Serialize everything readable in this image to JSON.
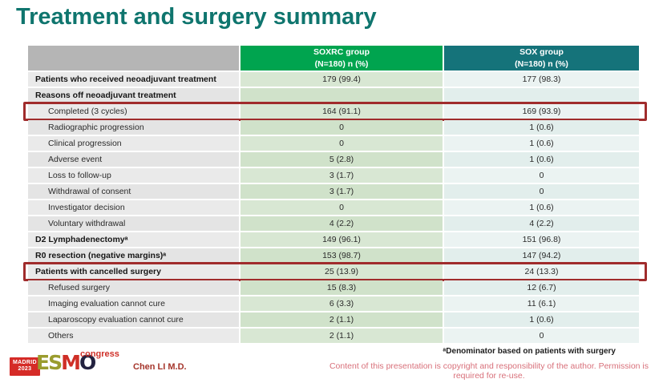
{
  "slide": {
    "title": "Treatment and surgery summary"
  },
  "table": {
    "header": {
      "soxrc_line1": "SOXRC group",
      "soxrc_line2": "(N=180) n (%)",
      "sox_line1": "SOX group",
      "sox_line2": "(N=180) n (%)"
    },
    "rows": [
      {
        "label": "Patients who received neoadjuvant treatment",
        "soxrc": "179 (99.4)",
        "sox": "177 (98.3)",
        "bold": true,
        "indent": false,
        "highlight": false
      },
      {
        "label": "Reasons off neoadjuvant treatment",
        "soxrc": "",
        "sox": "",
        "bold": true,
        "indent": false,
        "highlight": false
      },
      {
        "label": "Completed (3 cycles)",
        "soxrc": "164 (91.1)",
        "sox": "169 (93.9)",
        "bold": false,
        "indent": true,
        "highlight": true
      },
      {
        "label": "Radiographic progression",
        "soxrc": "0",
        "sox": "1 (0.6)",
        "bold": false,
        "indent": true,
        "highlight": false
      },
      {
        "label": "Clinical progression",
        "soxrc": "0",
        "sox": "1 (0.6)",
        "bold": false,
        "indent": true,
        "highlight": false
      },
      {
        "label": "Adverse event",
        "soxrc": "5 (2.8)",
        "sox": "1 (0.6)",
        "bold": false,
        "indent": true,
        "highlight": false
      },
      {
        "label": "Loss to follow-up",
        "soxrc": "3 (1.7)",
        "sox": "0",
        "bold": false,
        "indent": true,
        "highlight": false
      },
      {
        "label": "Withdrawal of consent",
        "soxrc": "3 (1.7)",
        "sox": "0",
        "bold": false,
        "indent": true,
        "highlight": false
      },
      {
        "label": "Investigator decision",
        "soxrc": "0",
        "sox": "1 (0.6)",
        "bold": false,
        "indent": true,
        "highlight": false
      },
      {
        "label": "Voluntary withdrawal",
        "soxrc": "4 (2.2)",
        "sox": "4 (2.2)",
        "bold": false,
        "indent": true,
        "highlight": false
      },
      {
        "label": "D2 Lymphadenectomyᵃ",
        "soxrc": "149 (96.1)",
        "sox": "151 (96.8)",
        "bold": true,
        "indent": false,
        "highlight": false
      },
      {
        "label": "R0 resection (negative margins)ᵃ",
        "soxrc": "153 (98.7)",
        "sox": "147 (94.2)",
        "bold": true,
        "indent": false,
        "highlight": false
      },
      {
        "label": "Patients with cancelled surgery",
        "soxrc": "25 (13.9)",
        "sox": "24 (13.3)",
        "bold": true,
        "indent": false,
        "highlight": true
      },
      {
        "label": "Refused surgery",
        "soxrc": "15 (8.3)",
        "sox": "12 (6.7)",
        "bold": false,
        "indent": true,
        "highlight": false
      },
      {
        "label": "Imaging evaluation cannot cure",
        "soxrc": "6 (3.3)",
        "sox": "11 (6.1)",
        "bold": false,
        "indent": true,
        "highlight": false
      },
      {
        "label": "Laparoscopy evaluation cannot cure",
        "soxrc": "2 (1.1)",
        "sox": "1 (0.6)",
        "bold": false,
        "indent": true,
        "highlight": false
      },
      {
        "label": "Others",
        "soxrc": "2 (1.1)",
        "sox": "0",
        "bold": false,
        "indent": true,
        "highlight": false
      }
    ]
  },
  "footer": {
    "footnote": "ᵃDenominator based on patients with surgery",
    "presenter": "Chen LI M.D.",
    "copyright": "Content of this presentation is copyright and responsibility of the author. Permission is required for re-use.",
    "logo": {
      "badge_line1": "MADRID",
      "badge_line2": "2023",
      "letters_es": "ES",
      "letters_m": "M",
      "letters_o": "O",
      "congress": "congress"
    }
  },
  "colors": {
    "title_color": "#0f756e",
    "label_header_bg": "#b5b5b5",
    "soxrc_header_bg": "#00a44f",
    "sox_header_bg": "#15737a",
    "label_cell_bg": "#eaeaea",
    "soxrc_cell_bg": "#d8e7d3",
    "sox_cell_bg": "#ebf3f2",
    "highlight_border": "#a02c2c",
    "copyright_color": "#d8707a",
    "presenter_color": "#a5352b",
    "badge_bg": "#d52b27",
    "esmo_olive": "#9a9c2e",
    "esmo_red": "#cf2f27",
    "esmo_dark": "#232240"
  }
}
